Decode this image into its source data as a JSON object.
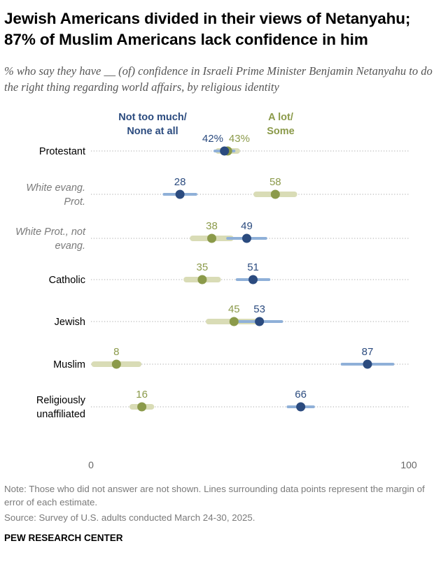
{
  "title": "Jewish Americans divided in their views of Netanyahu; 87% of Muslim Americans lack confidence in him",
  "subtitle": "% who say they have __ (of) confidence in Israeli Prime Minister Benjamin Netanyahu to do the right thing regarding world affairs, by religious identity",
  "note": "Note: Those who did not answer are not shown. Lines surrounding data points represent the margin of error of each estimate.",
  "source": "Source: Survey of U.S. adults conducted March 24-30, 2025.",
  "brand": "PEW RESEARCH CENTER",
  "colors": {
    "not_too_much": "#2b4b7f",
    "not_too_much_moe": "#8fb0d8",
    "a_lot": "#8b9a4a",
    "a_lot_moe": "#d9dcb6",
    "row_label": "#000000",
    "row_label_subgroup": "#7a7a7a",
    "dots": "#a7a7a7"
  },
  "chart_data": {
    "type": "dot",
    "title": "Jewish Americans divided in their views of Netanyahu; 87% of Muslim Americans lack confidence in him",
    "xlim": [
      0,
      100
    ],
    "x_ticks": [
      "0",
      "100"
    ],
    "legend": [
      {
        "key": "not_too_much",
        "label_lines": [
          "Not too much/",
          "None at all"
        ]
      },
      {
        "key": "a_lot",
        "label_lines": [
          "A lot/",
          "Some"
        ]
      }
    ],
    "categories": [
      {
        "label_lines": [
          "Protestant"
        ],
        "subgroup": false
      },
      {
        "label_lines": [
          "White evang.",
          "Prot."
        ],
        "subgroup": true
      },
      {
        "label_lines": [
          "White Prot., not",
          "evang."
        ],
        "subgroup": true
      },
      {
        "label_lines": [
          "Catholic"
        ],
        "subgroup": false
      },
      {
        "label_lines": [
          "Jewish"
        ],
        "subgroup": false
      },
      {
        "label_lines": [
          "Muslim"
        ],
        "subgroup": false
      },
      {
        "label_lines": [
          "Religiously",
          "unaffiliated"
        ],
        "subgroup": false
      }
    ],
    "series": [
      {
        "key": "not_too_much",
        "name": "Not too much/None at all",
        "values": [
          42,
          28,
          49,
          51,
          53,
          87,
          66
        ],
        "labels": [
          "42%",
          "28",
          "49",
          "51",
          "53",
          "87",
          "66"
        ],
        "margin_of_error": [
          3,
          5,
          6,
          5,
          7,
          8,
          4
        ]
      },
      {
        "key": "a_lot",
        "name": "A lot/Some",
        "values": [
          43,
          58,
          38,
          35,
          45,
          8,
          16
        ],
        "labels": [
          "43%",
          "58",
          "38",
          "35",
          "45",
          "8",
          "16"
        ],
        "margin_of_error": [
          3,
          6,
          6,
          5,
          8,
          7,
          3
        ]
      }
    ]
  }
}
